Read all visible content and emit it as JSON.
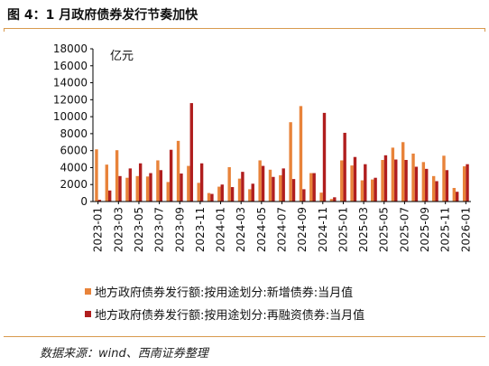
{
  "page": {
    "title": "图 4：1 月政府债券发行节奏加快",
    "source": "数据来源：wind、西南证券整理"
  },
  "chart_data": {
    "type": "bar",
    "unit_label": "亿元",
    "ylim": [
      0,
      18000
    ],
    "yticks": [
      0,
      2000,
      4000,
      6000,
      8000,
      10000,
      12000,
      14000,
      16000,
      18000
    ],
    "x_tick_labels": [
      "2023-01",
      "2023-03",
      "2023-05",
      "2023-07",
      "2023-09",
      "2023-11",
      "2024-01",
      "2024-03",
      "2024-05",
      "2024-07",
      "2024-09",
      "2024-11",
      "2025-01",
      "2025-03",
      "2025-05",
      "2025-07",
      "2025-09",
      "2025-11",
      "2026-01"
    ],
    "categories": [
      "2023-01",
      "2023-02",
      "2023-03",
      "2023-04",
      "2023-05",
      "2023-06",
      "2023-07",
      "2023-08",
      "2023-09",
      "2023-10",
      "2023-11",
      "2023-12",
      "2024-01",
      "2024-02",
      "2024-03",
      "2024-04",
      "2024-05",
      "2024-06",
      "2024-07",
      "2024-08",
      "2024-09",
      "2024-10",
      "2024-11",
      "2024-12",
      "2025-01",
      "2025-02",
      "2025-03",
      "2025-04",
      "2025-05",
      "2025-06",
      "2025-07",
      "2025-08",
      "2025-09",
      "2025-10",
      "2025-11",
      "2025-12",
      "2026-01"
    ],
    "series": [
      {
        "name": "地方政府债券发行额:按用途划分:新增债券:当月值",
        "color": "#e8833a",
        "values": [
          6150,
          4350,
          6050,
          2800,
          3000,
          2950,
          4850,
          2300,
          7150,
          4200,
          2200,
          1000,
          1750,
          4050,
          2700,
          1450,
          4850,
          3750,
          3100,
          9350,
          11250,
          3350,
          1050,
          300,
          4850,
          4250,
          2500,
          2600,
          4900,
          6350,
          7000,
          5650,
          4650,
          3000,
          5400,
          1600,
          4150
        ]
      },
      {
        "name": "地方政府债券发行额:按用途划分:再融资债券:当月值",
        "color": "#b01e1e",
        "values": [
          200,
          1300,
          3000,
          3900,
          4500,
          3350,
          3700,
          6100,
          3300,
          11600,
          4500,
          900,
          2000,
          1700,
          3500,
          2100,
          4200,
          2900,
          3900,
          2650,
          1450,
          3350,
          10450,
          500,
          8100,
          5250,
          4400,
          2800,
          5450,
          4950,
          4900,
          4100,
          3850,
          2400,
          3700,
          1150,
          4400
        ]
      }
    ]
  }
}
